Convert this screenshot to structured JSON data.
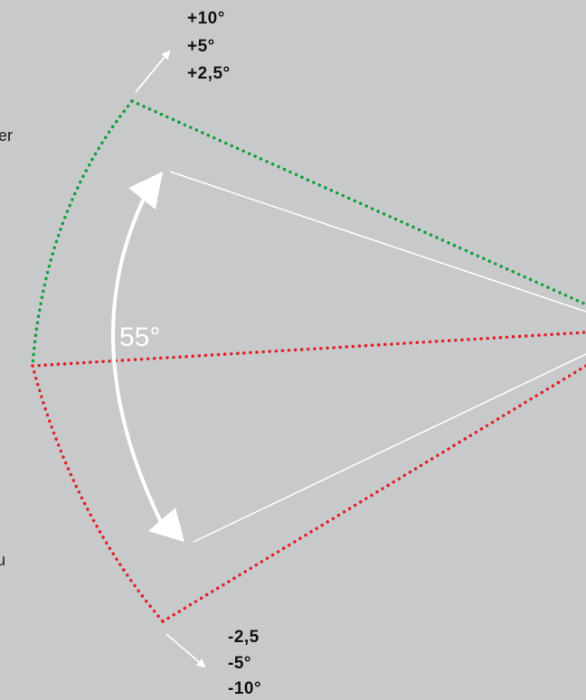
{
  "diagram": {
    "angle_label": "55°",
    "upper_values": [
      "+10°",
      "+5°",
      "+2,5°"
    ],
    "lower_values": [
      "-2,5",
      "-5°",
      "-10°"
    ],
    "edge_fragments": [
      "er",
      "u"
    ],
    "colors": {
      "background": "#c8c9cb",
      "upper_dotted": "#10a03c",
      "lower_dotted": "#e0242a",
      "beam_lines": "#ffffff"
    }
  }
}
